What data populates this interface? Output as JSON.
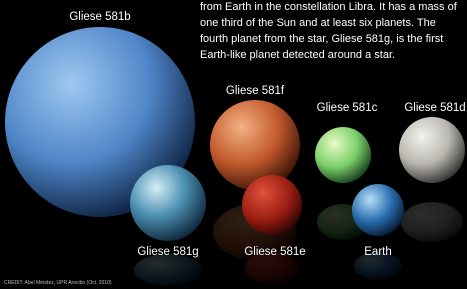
{
  "description": {
    "lines": [
      "from Earth in the constellation Libra. It has a mass of",
      "one third of the Sun and at least six planets. The",
      "fourth planet from the star, Gliese 581g, is the first",
      "Earth-like planet detected around a star."
    ]
  },
  "planets": [
    {
      "label": "Gliese 581b"
    },
    {
      "label": "Gliese 581f"
    },
    {
      "label": "Gliese 581c"
    },
    {
      "label": "Gliese 581d"
    },
    {
      "label": "Gliese 581g"
    },
    {
      "label": "Gliese 581e"
    },
    {
      "label": "Earth"
    }
  ],
  "credit": "CREDIT: Abel Méndez, UPR Arecibo (Oct. 2010)"
}
